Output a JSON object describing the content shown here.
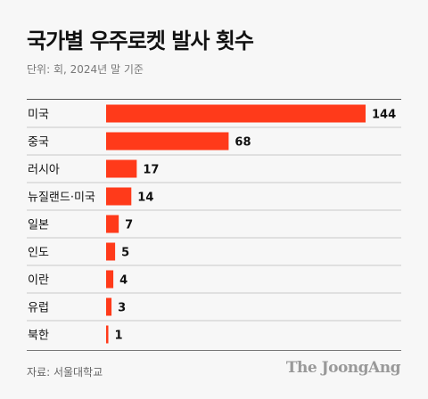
{
  "title": "국가별 우주로켓 발사 횟수",
  "subtitle": "단위: 회, 2024년 말 기준",
  "source": "자료: 서울대학교",
  "logo": "The JoongAng",
  "colors": {
    "bar": "#ff3a1a",
    "row_divider": "#c8c8c8",
    "background": "#f7f7f7"
  },
  "chart_data": {
    "type": "bar",
    "orientation": "horizontal",
    "categories": [
      "미국",
      "중국",
      "러시아",
      "뉴질랜드·미국",
      "일본",
      "인도",
      "이란",
      "유럽",
      "북한"
    ],
    "values": [
      144,
      68,
      17,
      14,
      7,
      5,
      4,
      3,
      1
    ],
    "title": "국가별 우주로켓 발사 횟수",
    "subtitle": "단위: 회, 2024년 말 기준",
    "xlabel": "",
    "ylabel": "",
    "xlim": [
      0,
      144
    ],
    "grid": false,
    "data_labels": true
  }
}
